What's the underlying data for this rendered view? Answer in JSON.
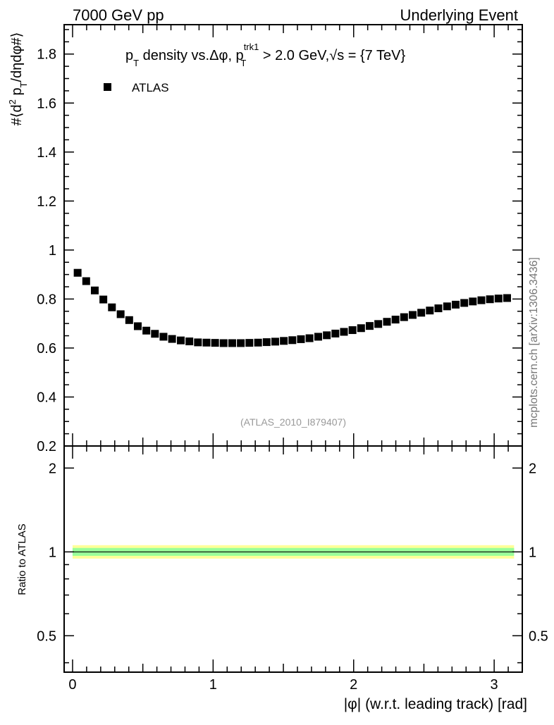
{
  "header": {
    "left": "7000 GeV pp",
    "right": "Underlying Event"
  },
  "side_label": "mcplots.cern.ch [arXiv:1306.3436]",
  "chart_data": [
    {
      "type": "scatter",
      "title": "p_T density vs.Δφ, p_T^trk1 > 2.0 GeV,√s = {7 TeV}",
      "title_parts": {
        "p": "p",
        "sub_t": "T",
        "mid": " density vs.Δφ, p",
        "sup_trk": "trk1",
        "sub_t2": "T",
        "rest": " > 2.0 GeV,",
        "sqrt": "√s",
        "end": " = {7 TeV}"
      },
      "ylabel": "#⟨d² p_T/dηdφ#⟩",
      "ylabel_parts": {
        "a": "#⟨d",
        "sup2": "2",
        "b": " p",
        "subT": "T",
        "c": "/dηdφ#⟩"
      },
      "watermark": "(ATLAS_2010_I879407)",
      "legend": {
        "label": "ATLAS",
        "placement": "top-left"
      },
      "xlim": [
        -0.06,
        3.2
      ],
      "ylim": [
        0.2,
        1.92
      ],
      "yticks": [
        "0.2",
        "0.4",
        "0.6",
        "0.8",
        "1",
        "1.2",
        "1.4",
        "1.6",
        "1.8"
      ],
      "series": [
        {
          "name": "ATLAS",
          "color": "#000000",
          "x": [
            0.036,
            0.097,
            0.158,
            0.219,
            0.28,
            0.342,
            0.403,
            0.464,
            0.525,
            0.586,
            0.647,
            0.708,
            0.77,
            0.831,
            0.892,
            0.953,
            1.014,
            1.075,
            1.136,
            1.197,
            1.258,
            1.32,
            1.381,
            1.442,
            1.503,
            1.564,
            1.625,
            1.686,
            1.748,
            1.809,
            1.87,
            1.931,
            1.992,
            2.053,
            2.114,
            2.175,
            2.237,
            2.298,
            2.359,
            2.42,
            2.481,
            2.542,
            2.603,
            2.665,
            2.726,
            2.787,
            2.848,
            2.909,
            2.97,
            3.031,
            3.092
          ],
          "y": [
            0.907,
            0.873,
            0.835,
            0.798,
            0.766,
            0.738,
            0.714,
            0.689,
            0.671,
            0.658,
            0.646,
            0.637,
            0.631,
            0.627,
            0.623,
            0.622,
            0.621,
            0.62,
            0.62,
            0.62,
            0.621,
            0.622,
            0.624,
            0.626,
            0.629,
            0.632,
            0.636,
            0.64,
            0.646,
            0.652,
            0.659,
            0.666,
            0.673,
            0.681,
            0.69,
            0.698,
            0.707,
            0.716,
            0.726,
            0.735,
            0.744,
            0.753,
            0.762,
            0.77,
            0.777,
            0.784,
            0.79,
            0.795,
            0.799,
            0.802,
            0.804
          ]
        }
      ]
    },
    {
      "type": "line",
      "ylabel": "Ratio to ATLAS",
      "xlabel": "|φ| (w.r.t. leading track) [rad]",
      "xlim": [
        -0.06,
        3.2
      ],
      "xticks": [
        "0",
        "1",
        "2",
        "3"
      ],
      "ylim": [
        0.37,
        2.4
      ],
      "yscale": "log",
      "yticks": [
        "0.5",
        "1",
        "2"
      ],
      "series": [
        {
          "name": "ATLAS",
          "values": [
            1,
            1
          ]
        }
      ],
      "bands": [
        {
          "lo": 0.946,
          "hi": 1.057,
          "color": "#ffff99"
        },
        {
          "lo": 0.968,
          "hi": 1.033,
          "color": "#99ff99"
        }
      ]
    }
  ]
}
